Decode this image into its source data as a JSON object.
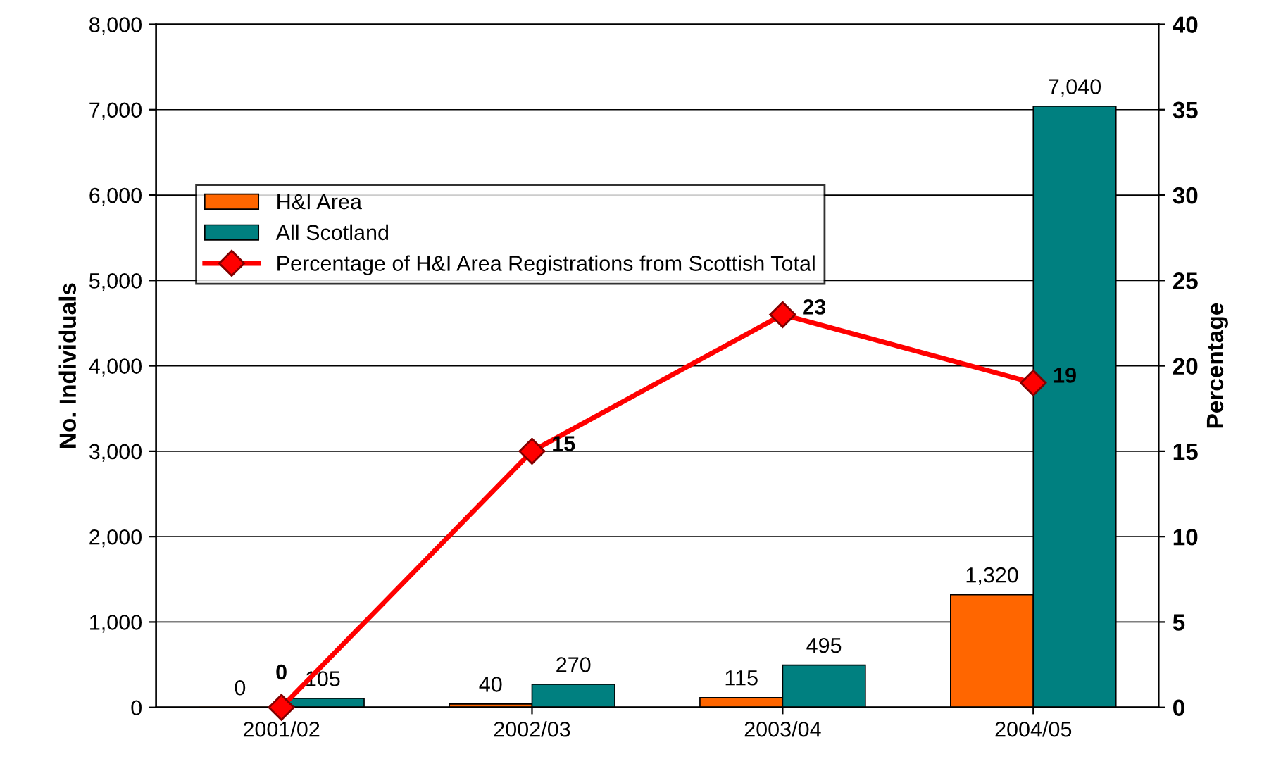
{
  "chart_data": {
    "type": "bar",
    "categories": [
      "2001/02",
      "2002/03",
      "2003/04",
      "2004/05"
    ],
    "ylabel": "No. Individuals",
    "y2label": "Percentage",
    "series": [
      {
        "name": "H&I Area",
        "color": "#ff6600",
        "values": [
          0,
          40,
          115,
          1320
        ],
        "value_labels": [
          "0",
          "40",
          "115",
          "1,320"
        ]
      },
      {
        "name": "All Scotland",
        "color": "#008080",
        "values": [
          105,
          270,
          495,
          7040
        ],
        "value_labels": [
          "105",
          "270",
          "495",
          "7,040"
        ]
      },
      {
        "name": "Percentage of H&I Area Registrations from Scottish Total",
        "type": "line",
        "axis": "y2",
        "color": "#ff0000",
        "marker": "diamond",
        "values": [
          0,
          15,
          23,
          19
        ],
        "value_labels": [
          "0",
          "15",
          "23",
          "19"
        ]
      }
    ],
    "ylim": [
      0,
      8000
    ],
    "yticks": [
      0,
      {
        "value": 1000,
        "label": "1,000"
      },
      {
        "value": 2000,
        "label": "2,000"
      },
      {
        "value": 3000,
        "label": "3,000"
      },
      {
        "value": 4000,
        "label": "4,000"
      },
      {
        "value": 5000,
        "label": "5,000"
      },
      {
        "value": 6000,
        "label": "6,000"
      },
      {
        "value": 7000,
        "label": "7,000"
      },
      {
        "value": 8000,
        "label": "8,000"
      }
    ],
    "y2lim": [
      0,
      40
    ],
    "y2ticks": [
      0,
      5,
      10,
      15,
      20,
      25,
      30,
      35,
      40
    ],
    "grid": "y",
    "legend": "top left"
  }
}
